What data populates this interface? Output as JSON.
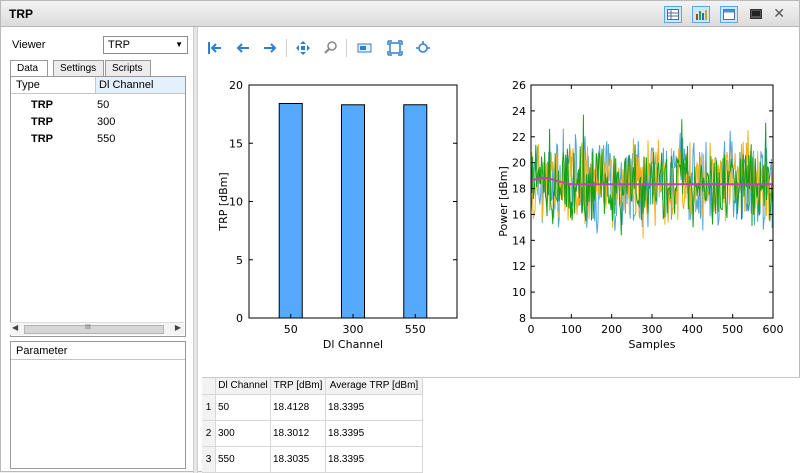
{
  "window": {
    "title": "TRP"
  },
  "left_panel": {
    "viewer_label": "Viewer",
    "viewer_value": "TRP",
    "tabs": [
      "Data",
      "Settings",
      "Scripts"
    ],
    "tree_headers": [
      "Type",
      "Dl Channel"
    ],
    "tree_rows": [
      {
        "type": "TRP",
        "channel": "50"
      },
      {
        "type": "TRP",
        "channel": "300"
      },
      {
        "type": "TRP",
        "channel": "550"
      }
    ],
    "hscroll_grip": "III",
    "parameter_header": "Parameter"
  },
  "bar_chart": {
    "type": "bar",
    "xlabel": "Dl Channel",
    "ylabel": "TRP [dBm]",
    "categories": [
      "50",
      "300",
      "550"
    ],
    "values": [
      18.4128,
      18.3012,
      18.3035
    ],
    "ylim": [
      0,
      20
    ],
    "yticks": [
      0,
      5,
      10,
      15,
      20
    ],
    "bar_color": "#55aaff"
  },
  "line_chart": {
    "type": "line",
    "xlabel": "Samples",
    "ylabel": "Power [dBm]",
    "xlim": [
      0,
      600
    ],
    "ylim": [
      8,
      26
    ],
    "xticks": [
      0,
      100,
      200,
      300,
      400,
      500,
      600
    ],
    "yticks": [
      8,
      10,
      12,
      14,
      16,
      18,
      20,
      22,
      24,
      26
    ],
    "series": [
      {
        "color": "#4da6e0",
        "mean": 18.4,
        "spread": 3.0
      },
      {
        "color": "#f0b020",
        "mean": 18.3,
        "spread": 2.8
      },
      {
        "color": "#15a015",
        "mean": 18.3,
        "spread": 2.6
      },
      {
        "color": "#c040c0",
        "mean": 18.34,
        "spread": 0.0
      }
    ]
  },
  "table": {
    "headers": [
      "Dl Channel",
      "TRP [dBm]",
      "Average TRP [dBm]"
    ],
    "rows": [
      {
        "n": "1",
        "cells": [
          "50",
          "18.4128",
          "18.3395"
        ]
      },
      {
        "n": "2",
        "cells": [
          "300",
          "18.3012",
          "18.3395"
        ]
      },
      {
        "n": "3",
        "cells": [
          "550",
          "18.3035",
          "18.3395"
        ]
      }
    ]
  },
  "toolbar_icons": [
    "home-icon",
    "back-arrow-icon",
    "forward-arrow-icon",
    "pan-icon",
    "zoom-icon",
    "configure-subplots-icon",
    "fit-icon",
    "save-icon"
  ]
}
